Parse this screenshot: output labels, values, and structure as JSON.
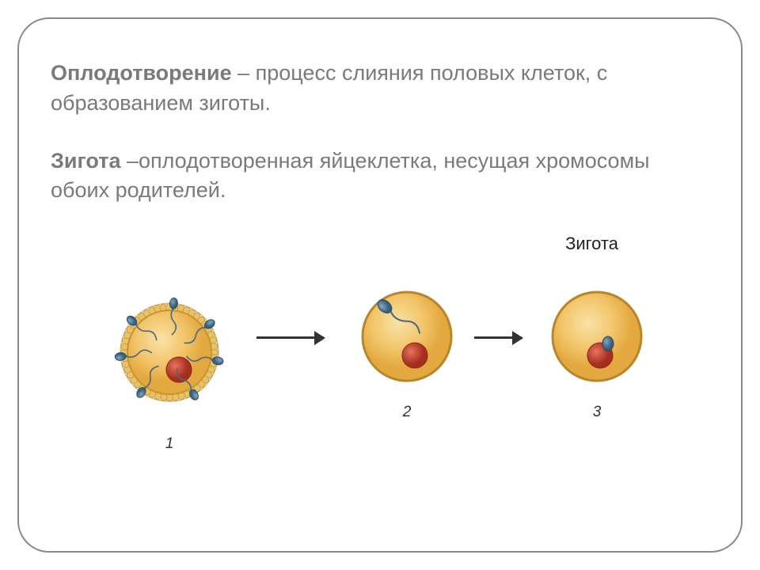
{
  "definitions": {
    "fertilization": {
      "term": "Оплодотворение",
      "text": " – процесс слияния половых клеток, с образованием зиготы."
    },
    "zygote": {
      "term": "Зигота",
      "text": " –оплодотворенная яйцеклетка, несущая хромосомы обоих родителей."
    }
  },
  "diagram": {
    "zygote_label": "Зигота",
    "stages": {
      "s1": "1",
      "s2": "2",
      "s3": "3"
    },
    "colors": {
      "cell_membrane": "#c99a3a",
      "cell_membrane_light": "#d9b56a",
      "cell_fill_outer": "#f5d182",
      "cell_fill_inner": "#e8b04a",
      "nucleus_outer": "#b53a2a",
      "nucleus_inner": "#d8543e",
      "sperm_head": "#4a7a9a",
      "sperm_head_light": "#6a9abf",
      "sperm_tail": "#5a7a8a",
      "arrow": "#333333",
      "text": "#7a7a7a",
      "border": "#888888",
      "label": "#222222"
    },
    "cell_radius": 60,
    "nucleus_radius": 17,
    "sperm_count_stage1": 7
  }
}
